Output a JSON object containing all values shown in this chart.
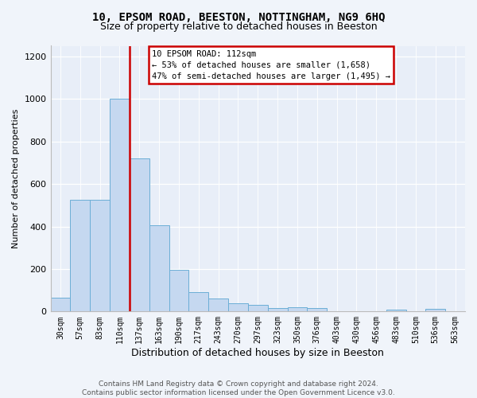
{
  "title1": "10, EPSOM ROAD, BEESTON, NOTTINGHAM, NG9 6HQ",
  "title2": "Size of property relative to detached houses in Beeston",
  "xlabel": "Distribution of detached houses by size in Beeston",
  "ylabel": "Number of detached properties",
  "categories": [
    "30sqm",
    "57sqm",
    "83sqm",
    "110sqm",
    "137sqm",
    "163sqm",
    "190sqm",
    "217sqm",
    "243sqm",
    "270sqm",
    "297sqm",
    "323sqm",
    "350sqm",
    "376sqm",
    "403sqm",
    "430sqm",
    "456sqm",
    "483sqm",
    "510sqm",
    "536sqm",
    "563sqm"
  ],
  "values": [
    65,
    525,
    525,
    1000,
    720,
    405,
    195,
    90,
    60,
    40,
    32,
    15,
    20,
    17,
    0,
    0,
    0,
    10,
    0,
    12,
    0
  ],
  "bar_color": "#c5d8f0",
  "bar_edge_color": "#6baed6",
  "highlight_idx": 3,
  "highlight_line_color": "#cc0000",
  "annotation_line1": "10 EPSOM ROAD: 112sqm",
  "annotation_line2": "← 53% of detached houses are smaller (1,658)",
  "annotation_line3": "47% of semi-detached houses are larger (1,495) →",
  "annotation_box_facecolor": "#ffffff",
  "annotation_box_edgecolor": "#cc0000",
  "ylim": [
    0,
    1250
  ],
  "yticks": [
    0,
    200,
    400,
    600,
    800,
    1000,
    1200
  ],
  "footer_text": "Contains HM Land Registry data © Crown copyright and database right 2024.\nContains public sector information licensed under the Open Government Licence v3.0.",
  "bg_color": "#f0f4fa",
  "plot_bg_color": "#e8eef8",
  "grid_color": "#ffffff",
  "title1_fontsize": 10,
  "title2_fontsize": 9,
  "xlabel_fontsize": 9,
  "ylabel_fontsize": 8,
  "tick_fontsize": 7,
  "footer_fontsize": 6.5
}
